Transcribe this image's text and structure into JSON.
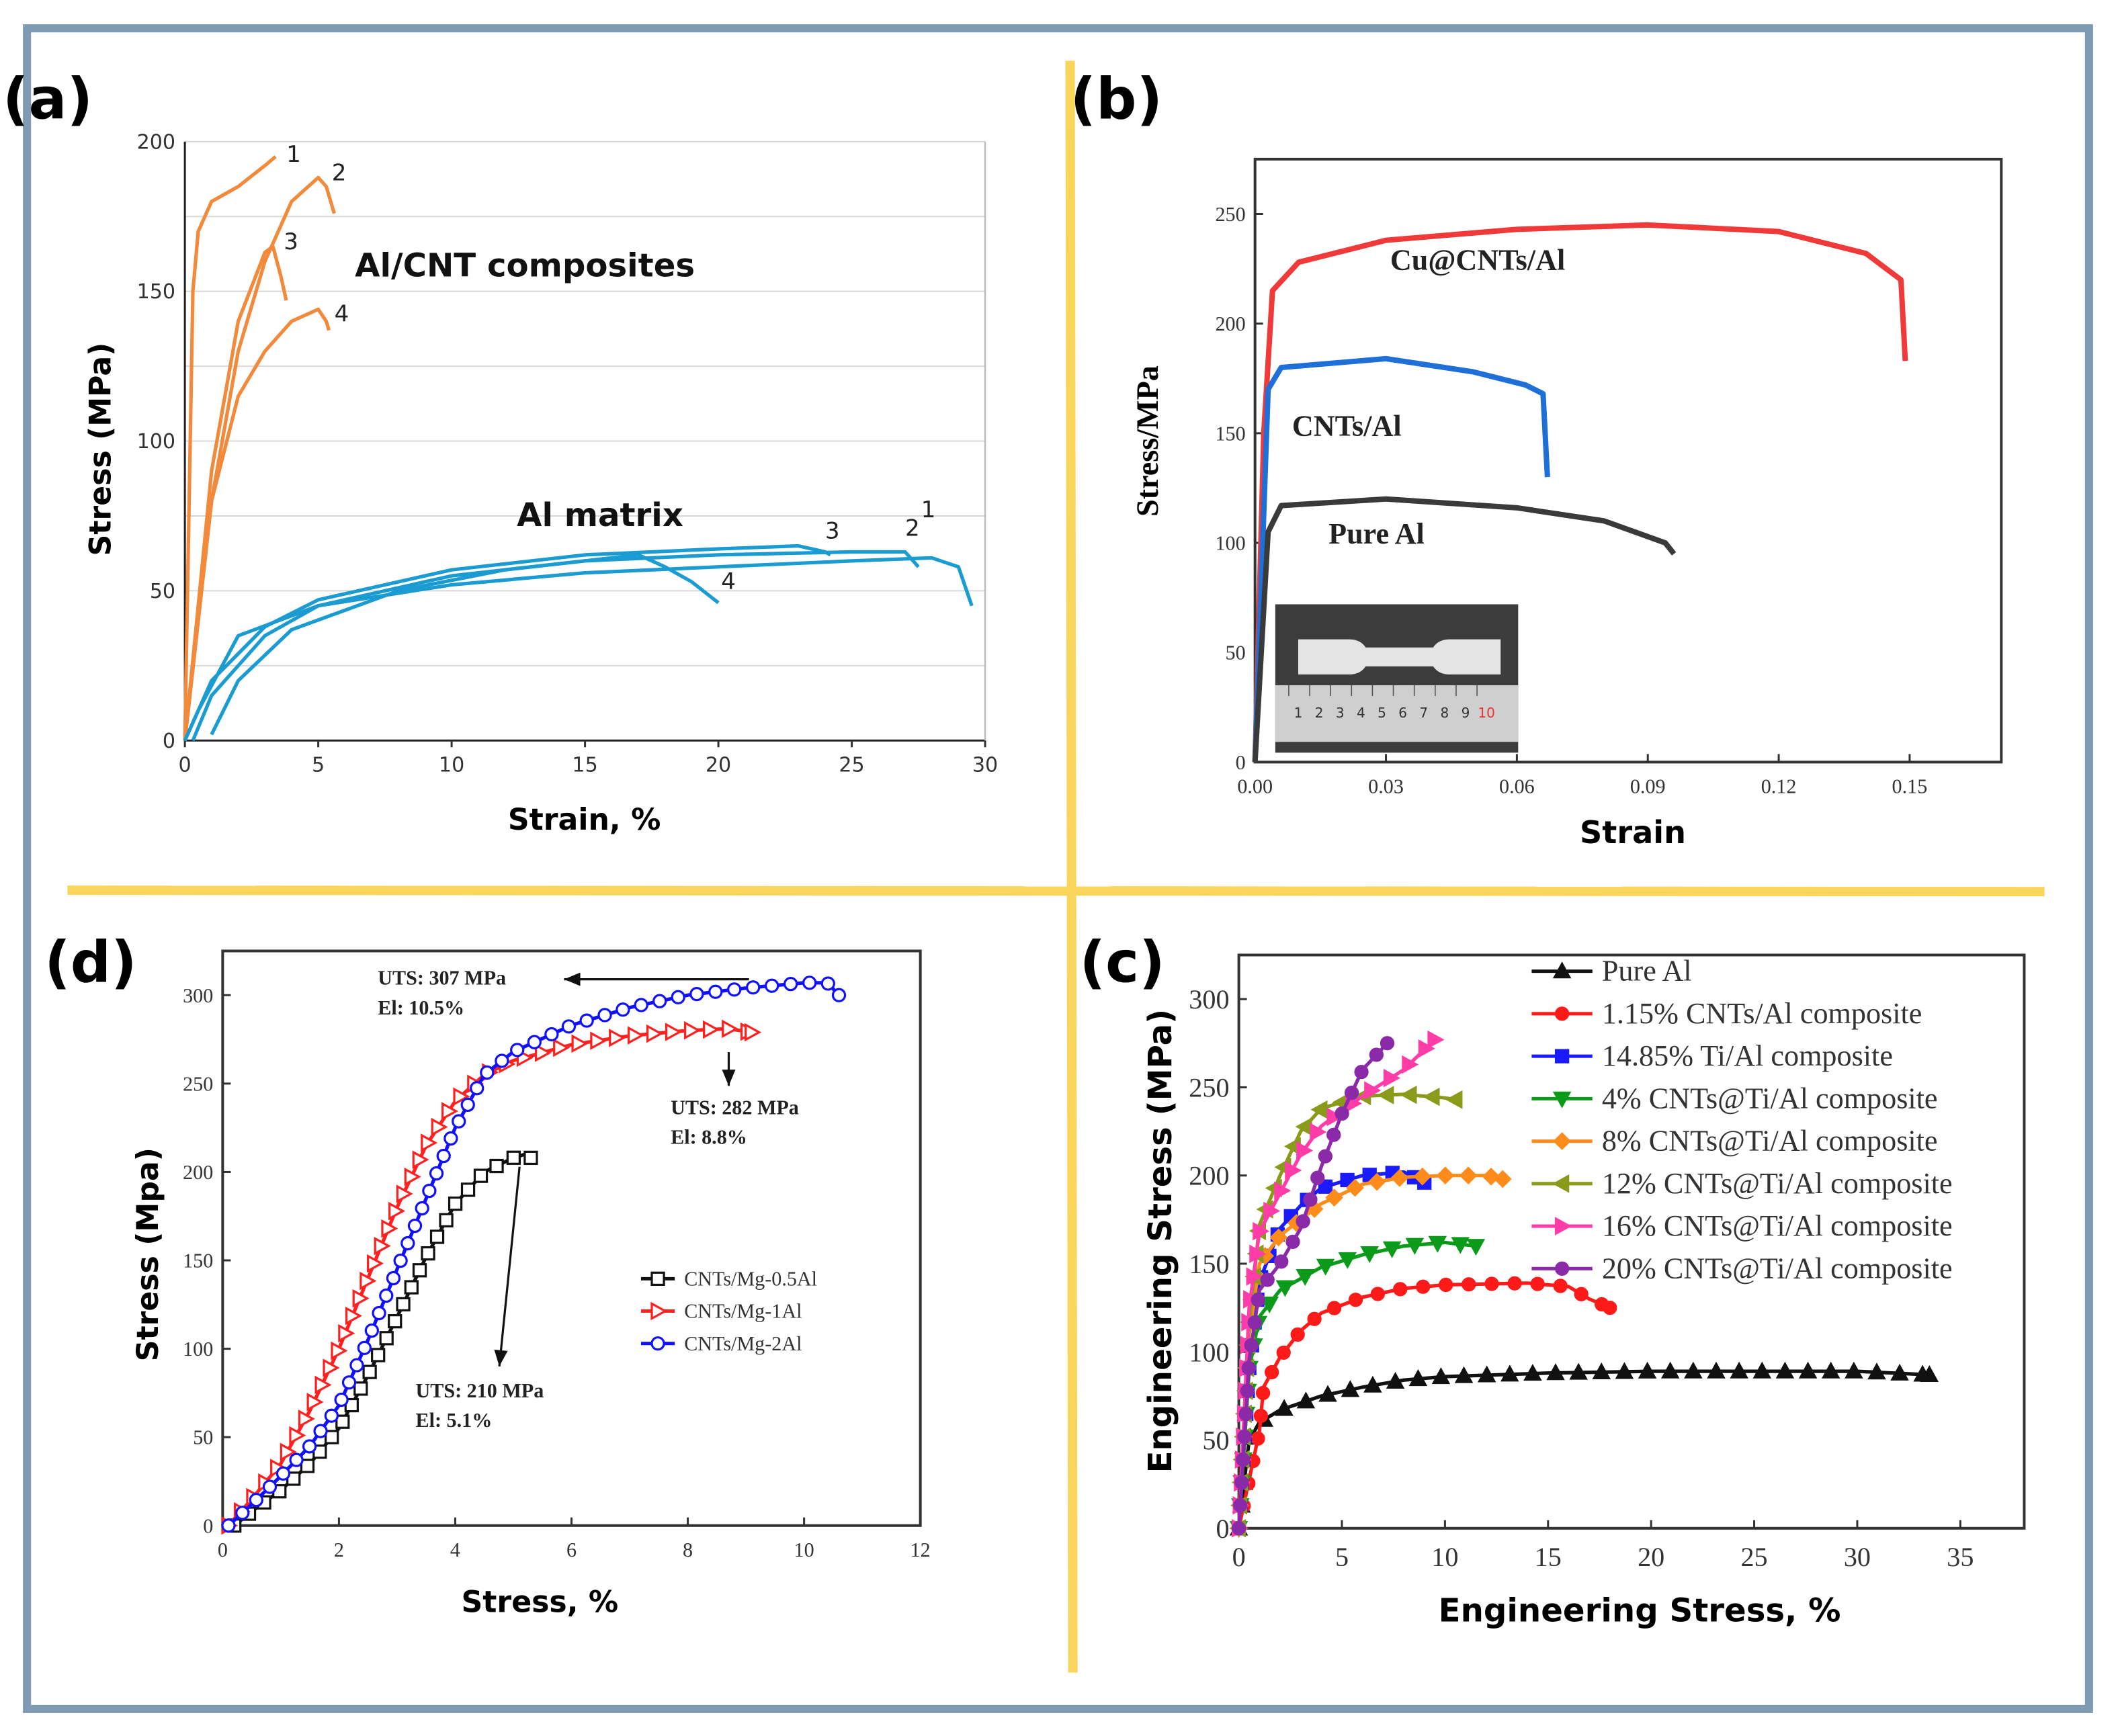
{
  "figure": {
    "panel_labels": [
      "(a)",
      "(b)",
      "(d)",
      "(c)"
    ],
    "colors": {
      "frame": "#7f9bb3",
      "divider": "#f9d55c"
    }
  },
  "chart_data": [
    {
      "panel": "(a)",
      "type": "line",
      "title": "",
      "xlabel": "Strain, %",
      "ylabel": "Stress (MPa)",
      "xlim": [
        0,
        30
      ],
      "ylim": [
        0,
        200
      ],
      "xticks": [
        "0",
        "5",
        "10",
        "15",
        "20",
        "25",
        "30"
      ],
      "xtick_values": [
        0,
        5,
        10,
        15,
        20,
        25,
        30
      ],
      "yticks": [
        "0",
        "50",
        "100",
        "150",
        "200"
      ],
      "ytick_values": [
        0,
        50,
        100,
        150,
        200
      ],
      "grid": true,
      "annotations": [
        "Al/CNT composites",
        "Al matrix"
      ],
      "series": [
        {
          "name": "1",
          "group": "Al/CNT composites",
          "color": "#f28a3c",
          "x": [
            0,
            0.3,
            0.5,
            1,
            2,
            3,
            3.4
          ],
          "y": [
            0,
            150,
            170,
            180,
            185,
            192,
            195
          ]
        },
        {
          "name": "2",
          "group": "Al/CNT composites",
          "color": "#f28a3c",
          "x": [
            0,
            1,
            2,
            3,
            4,
            5,
            5.3,
            5.6
          ],
          "y": [
            0,
            80,
            130,
            160,
            180,
            188,
            185,
            176
          ]
        },
        {
          "name": "3",
          "group": "Al/CNT composites",
          "color": "#f28a3c",
          "x": [
            0,
            1,
            2,
            3,
            3.3,
            3.6,
            3.8
          ],
          "y": [
            0,
            90,
            140,
            163,
            165,
            155,
            147
          ]
        },
        {
          "name": "4",
          "group": "Al/CNT composites",
          "color": "#f28a3c",
          "x": [
            0,
            1,
            2,
            3,
            4,
            5,
            5.3,
            5.4
          ],
          "y": [
            0,
            80,
            115,
            130,
            140,
            144,
            140,
            137
          ]
        },
        {
          "name": "1",
          "group": "Al matrix",
          "color": "#1a9bd1",
          "x": [
            0,
            0.5,
            2,
            5,
            10,
            15,
            20,
            25,
            28,
            29,
            29.5
          ],
          "y": [
            0,
            10,
            35,
            45,
            52,
            56,
            58,
            60,
            61,
            58,
            45
          ]
        },
        {
          "name": "2",
          "group": "Al matrix",
          "color": "#1a9bd1",
          "x": [
            0.3,
            1,
            3,
            5,
            10,
            15,
            20,
            25,
            27,
            27.5
          ],
          "y": [
            0,
            15,
            35,
            45,
            55,
            60,
            62,
            63,
            63,
            58
          ]
        },
        {
          "name": "3",
          "group": "Al matrix",
          "color": "#1a9bd1",
          "x": [
            0,
            1,
            3,
            5,
            10,
            15,
            20,
            23,
            24,
            24.2
          ],
          "y": [
            0,
            20,
            38,
            47,
            57,
            62,
            64,
            65,
            63,
            62
          ]
        },
        {
          "name": "4",
          "group": "Al matrix",
          "color": "#1a9bd1",
          "x": [
            1,
            2,
            4,
            8,
            12,
            17,
            18,
            19,
            20
          ],
          "y": [
            2,
            20,
            37,
            50,
            57,
            62,
            58,
            53,
            46
          ]
        }
      ]
    },
    {
      "panel": "(b)",
      "type": "line",
      "title": "",
      "xlabel": "Strain",
      "ylabel": "Stress/MPa",
      "xlim": [
        0,
        0.171
      ],
      "ylim": [
        0,
        275
      ],
      "xticks": [
        "0.00",
        "0.03",
        "0.06",
        "0.09",
        "0.12",
        "0.15"
      ],
      "xtick_values": [
        0,
        0.03,
        0.06,
        0.09,
        0.12,
        0.15
      ],
      "yticks": [
        "0",
        "50",
        "100",
        "150",
        "200",
        "250"
      ],
      "ytick_values": [
        0,
        50,
        100,
        150,
        200,
        250
      ],
      "grid": false,
      "inset_ruler_labels": [
        "1",
        "2",
        "3",
        "4",
        "5",
        "6",
        "7",
        "8",
        "9",
        "10"
      ],
      "series": [
        {
          "name": "Cu@CNTs/Al",
          "color": "#f03a3a",
          "x": [
            0,
            0.002,
            0.004,
            0.01,
            0.03,
            0.06,
            0.09,
            0.12,
            0.14,
            0.148,
            0.149
          ],
          "y": [
            0,
            150,
            215,
            228,
            238,
            243,
            245,
            242,
            232,
            220,
            183
          ]
        },
        {
          "name": "CNTs/Al",
          "color": "#1f6fd8",
          "x": [
            0,
            0.003,
            0.006,
            0.03,
            0.05,
            0.062,
            0.066,
            0.067
          ],
          "y": [
            0,
            170,
            180,
            184,
            178,
            172,
            168,
            130
          ]
        },
        {
          "name": "Pure Al",
          "color": "#3a3a3a",
          "x": [
            0,
            0.003,
            0.006,
            0.03,
            0.06,
            0.08,
            0.094,
            0.096
          ],
          "y": [
            0,
            105,
            117,
            120,
            116,
            110,
            100,
            95
          ]
        }
      ]
    },
    {
      "panel": "(d)",
      "type": "line",
      "title": "",
      "xlabel": "Stress, %",
      "ylabel": "Stress (Mpa)",
      "xlim": [
        0,
        12
      ],
      "ylim": [
        0,
        325
      ],
      "xticks": [
        "0",
        "2",
        "4",
        "6",
        "8",
        "10",
        "12"
      ],
      "xtick_values": [
        0,
        2,
        4,
        6,
        8,
        10,
        12
      ],
      "yticks": [
        "0",
        "50",
        "100",
        "150",
        "200",
        "250",
        "300"
      ],
      "ytick_values": [
        0,
        50,
        100,
        150,
        200,
        250,
        300
      ],
      "grid": false,
      "legend_position": "center-right",
      "annotations": [
        {
          "lines": [
            "UTS:  307 MPa",
            "El:  10.5%"
          ]
        },
        {
          "lines": [
            "UTS:  282 MPa",
            "El:  8.8%"
          ]
        },
        {
          "lines": [
            "UTS:  210 MPa",
            "El:  5.1%"
          ]
        }
      ],
      "series": [
        {
          "name": "CNTs/Mg-0.5Al",
          "color": "#111111",
          "marker": "square",
          "x": [
            0.2,
            0.5,
            1,
            1.5,
            2,
            2.5,
            3,
            3.5,
            4,
            4.5,
            5,
            5.2,
            5.3
          ],
          "y": [
            0,
            8,
            20,
            35,
            55,
            85,
            118,
            152,
            182,
            200,
            208,
            210,
            208
          ]
        },
        {
          "name": "CNTs/Mg-1Al",
          "color": "#ff2020",
          "marker": "triangle-right",
          "x": [
            0.1,
            0.5,
            1,
            1.5,
            2,
            2.5,
            3,
            3.5,
            4,
            4.5,
            5,
            6,
            7,
            8,
            8.7,
            9.1
          ],
          "y": [
            0,
            15,
            35,
            65,
            100,
            140,
            180,
            215,
            240,
            255,
            263,
            272,
            277,
            280,
            281,
            279
          ]
        },
        {
          "name": "CNTs/Mg-2Al",
          "color": "#1010ff",
          "marker": "circle",
          "x": [
            0.1,
            0.5,
            1,
            1.5,
            2,
            2.5,
            3,
            3.5,
            4,
            4.5,
            5,
            6,
            7,
            8,
            9,
            10,
            10.4,
            10.6
          ],
          "y": [
            0,
            12,
            28,
            45,
            68,
            105,
            145,
            185,
            225,
            255,
            268,
            283,
            293,
            300,
            304,
            307,
            307,
            300
          ]
        }
      ]
    },
    {
      "panel": "(c)",
      "type": "line",
      "title": "",
      "xlabel": "Engineering Stress, %",
      "ylabel": "Engineering Stress (MPa)",
      "xlim": [
        0,
        38.1
      ],
      "ylim": [
        0,
        325
      ],
      "xticks": [
        "0",
        "5",
        "10",
        "15",
        "20",
        "25",
        "30",
        "35"
      ],
      "xtick_values": [
        0,
        5,
        10,
        15,
        20,
        25,
        30,
        35
      ],
      "yticks": [
        "0",
        "50",
        "100",
        "150",
        "200",
        "250",
        "300"
      ],
      "ytick_values": [
        0,
        50,
        100,
        150,
        200,
        250,
        300
      ],
      "grid": false,
      "legend_position": "top-right",
      "series": [
        {
          "name": "Pure Al",
          "color": "#111111",
          "marker": "triangle-up",
          "x": [
            0,
            0.5,
            1,
            2,
            4,
            6,
            8,
            10,
            15,
            20,
            25,
            30,
            33.5
          ],
          "y": [
            0,
            50,
            60,
            67,
            75,
            80,
            84,
            86,
            88,
            89,
            89,
            89,
            87
          ]
        },
        {
          "name": "1.15% CNTs/Al composite",
          "color": "#ff1a1a",
          "marker": "circle-filled",
          "x": [
            0,
            1,
            1.2,
            2,
            3,
            4,
            6,
            8,
            10,
            14,
            16,
            17,
            18
          ],
          "y": [
            0,
            55,
            80,
            97,
            112,
            122,
            131,
            136,
            138,
            139,
            137,
            130,
            125
          ]
        },
        {
          "name": "14.85% Ti/Al composite",
          "color": "#1a1aff",
          "marker": "square-filled",
          "x": [
            0,
            0.5,
            1,
            2,
            3,
            4,
            6,
            8,
            9
          ],
          "y": [
            0,
            90,
            140,
            170,
            183,
            193,
            200,
            202,
            196
          ]
        },
        {
          "name": "4% CNTs@Ti/Al composite",
          "color": "#0c9a1a",
          "marker": "triangle-down",
          "x": [
            0,
            0.5,
            1,
            2,
            4,
            6,
            8,
            10,
            11.5
          ],
          "y": [
            0,
            90,
            120,
            135,
            148,
            155,
            160,
            162,
            160
          ]
        },
        {
          "name": "8% CNTs@Ti/Al composite",
          "color": "#ff8c1a",
          "marker": "diamond",
          "x": [
            0,
            0.5,
            1,
            2,
            4,
            6,
            8,
            10,
            12,
            12.8
          ],
          "y": [
            0,
            110,
            150,
            166,
            184,
            195,
            199,
            200,
            200,
            198
          ]
        },
        {
          "name": "12% CNTs@Ti/Al composite",
          "color": "#8a9a1a",
          "marker": "triangle-left",
          "x": [
            0,
            0.5,
            1,
            2,
            3,
            4,
            6,
            8,
            10,
            10.5
          ],
          "y": [
            0,
            115,
            172,
            200,
            225,
            238,
            245,
            246,
            244,
            243
          ]
        },
        {
          "name": "16% CNTs@Ti/Al composite",
          "color": "#ff3ca8",
          "marker": "triangle-right-filled",
          "x": [
            0,
            0.5,
            1,
            2,
            3,
            4,
            6,
            8,
            9.5
          ],
          "y": [
            0,
            125,
            168,
            190,
            212,
            228,
            245,
            260,
            277
          ]
        },
        {
          "name": "20% CNTs@Ti/Al composite",
          "color": "#8a2aa8",
          "marker": "circle-filled",
          "x": [
            0,
            0.5,
            1,
            2,
            3,
            4,
            5,
            6,
            7.2
          ],
          "y": [
            0,
            95,
            135,
            150,
            170,
            205,
            235,
            260,
            275
          ]
        }
      ]
    }
  ]
}
